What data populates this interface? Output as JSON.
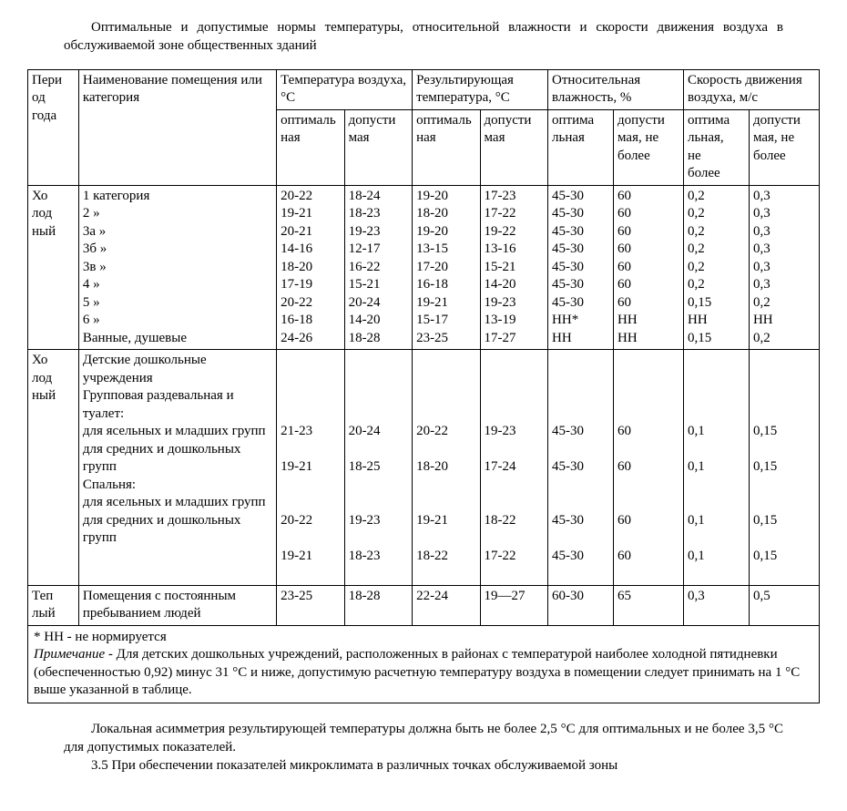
{
  "intro": "Оптимальные и допустимые нормы температуры, относительной влажности и скорости движения воздуха в обслуживаемой зоне общественных зданий",
  "columns": {
    "period": "Пери\nод\nгода",
    "room": "Наименование помещения или категория",
    "temp": "Температура воздуха, °С",
    "res_temp": "Результирующая температура, °С",
    "humidity": "Относительная влажность, %",
    "speed": "Скорость движения воздуха, м/с",
    "opt": "оптималь\nная",
    "dop": "допусти\nмая",
    "opt2": "оптима\nльная",
    "dop_nb": "допусти\nмая, не\nболее",
    "opt_nb": "оптима\nльная,\nне\nболее",
    "dop_nb2": "допусти\nмая, не\nболее"
  },
  "col_widths": [
    "45px",
    "175px",
    "60px",
    "60px",
    "60px",
    "60px",
    "58px",
    "62px",
    "58px",
    "62px"
  ],
  "sections": [
    {
      "period": "Хо\nлод\nный",
      "rows": [
        {
          "name": "1 категория",
          "v": [
            "20-22",
            "18-24",
            "19-20",
            "17-23",
            "45-30",
            "60",
            "0,2",
            "0,3"
          ]
        },
        {
          "name": "2 »",
          "v": [
            "19-21",
            "18-23",
            "18-20",
            "17-22",
            "45-30",
            "60",
            "0,2",
            "0,3"
          ]
        },
        {
          "name": "3а »",
          "v": [
            "20-21",
            "19-23",
            "19-20",
            "19-22",
            "45-30",
            "60",
            "0,2",
            "0,3"
          ]
        },
        {
          "name": "3б »",
          "v": [
            "14-16",
            "12-17",
            "13-15",
            "13-16",
            "45-30",
            "60",
            "0,2",
            "0,3"
          ]
        },
        {
          "name": "3в »",
          "v": [
            "18-20",
            "16-22",
            "17-20",
            "15-21",
            "45-30",
            "60",
            "0,2",
            "0,3"
          ]
        },
        {
          "name": "4 »",
          "v": [
            "17-19",
            "15-21",
            "16-18",
            "14-20",
            "45-30",
            "60",
            "0,2",
            "0,3"
          ]
        },
        {
          "name": "5 »",
          "v": [
            "20-22",
            "20-24",
            "19-21",
            "19-23",
            "45-30",
            "60",
            "0,15",
            "0,2"
          ]
        },
        {
          "name": "6 »",
          "v": [
            "16-18",
            "14-20",
            "15-17",
            "13-19",
            "НН*",
            "НН",
            "НН",
            "НН"
          ]
        },
        {
          "name": "Ванные, душевые",
          "v": [
            "24-26",
            "18-28",
            "23-25",
            "17-27",
            "НН",
            "НН",
            "0,15",
            "0,2"
          ]
        }
      ]
    },
    {
      "period": "Хо\nлод\nный",
      "rows": [
        {
          "name": "Детские дошкольные учреждения",
          "v": [
            "",
            "",
            "",
            "",
            "",
            "",
            "",
            ""
          ]
        },
        {
          "name": "Групповая раздевальная и туалет:",
          "v": [
            "",
            "",
            "",
            "",
            "",
            "",
            "",
            ""
          ]
        },
        {
          "name": "для ясельных и млад­ших групп",
          "v": [
            "21-23",
            "20-24",
            "20-22",
            "19-23",
            "45-30",
            "60",
            "0,1",
            "0,15"
          ]
        },
        {
          "name": "для средних и до­школьных групп",
          "v": [
            "19-21",
            "18-25",
            "18-20",
            "17-24",
            "45-30",
            "60",
            "0,1",
            "0,15"
          ]
        },
        {
          "name": "Спальня:",
          "v": [
            "",
            "",
            "",
            "",
            "",
            "",
            "",
            ""
          ]
        },
        {
          "name": "для ясельных и млад­ших групп",
          "v": [
            "20-22",
            "19-23",
            "19-21",
            "18-22",
            "45-30",
            "60",
            "0,1",
            "0,15"
          ]
        },
        {
          "name": "для средних и до­школьных групп",
          "v": [
            "19-21",
            "18-23",
            "18-22",
            "17-22",
            "45-30",
            "60",
            "0,1",
            "0,15"
          ]
        }
      ]
    },
    {
      "period": "Теп\nлый",
      "rows": [
        {
          "name": "Помещения с постоян­ным пребыванием людей",
          "v": [
            "23-25",
            "18-28",
            "22-24",
            "19—27",
            "60-30",
            "65",
            "0,3",
            "0,5"
          ]
        }
      ]
    }
  ],
  "footnote": {
    "star": "* НН - не нормируется",
    "note_label": "Примечание",
    "note_body": " - Для детских дошкольных учреждений, расположенных в районах с температурой наиболее холодной пятидневки (обеспеченностью 0,92) минус 31 °С и ниже, допустимую расчетную температуру воздуха в помещении следует принимать на 1 °С выше указанной в таблице."
  },
  "after": {
    "p1": "Локальная асимметрия результирующей температуры должна быть не более 2,5 °С для оптимальных и не более 3,5 °С для допустимых показателей.",
    "p2": "3.5 При обеспечении показателей микроклимата в различных точках обслуживаемой зоны"
  }
}
